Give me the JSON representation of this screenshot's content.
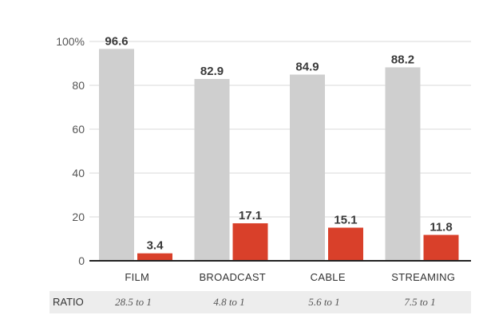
{
  "chart_data": {
    "type": "bar",
    "categories": [
      "FILM",
      "BROADCAST",
      "CABLE",
      "STREAMING"
    ],
    "series": [
      {
        "values": [
          96.6,
          82.9,
          84.9,
          88.2
        ],
        "color": "#cfcfcf"
      },
      {
        "values": [
          3.4,
          17.1,
          15.1,
          11.8
        ],
        "color": "#d9402a"
      }
    ],
    "ylim": [
      0,
      100
    ],
    "yticks": [
      "0",
      "20",
      "40",
      "60",
      "80",
      "100%"
    ],
    "grid": true,
    "title": "",
    "xlabel": "",
    "ylabel": ""
  },
  "ratio": {
    "label": "RATIO",
    "values": [
      "28.5 to 1",
      "4.8 to 1",
      "5.6 to 1",
      "7.5 to 1"
    ]
  }
}
